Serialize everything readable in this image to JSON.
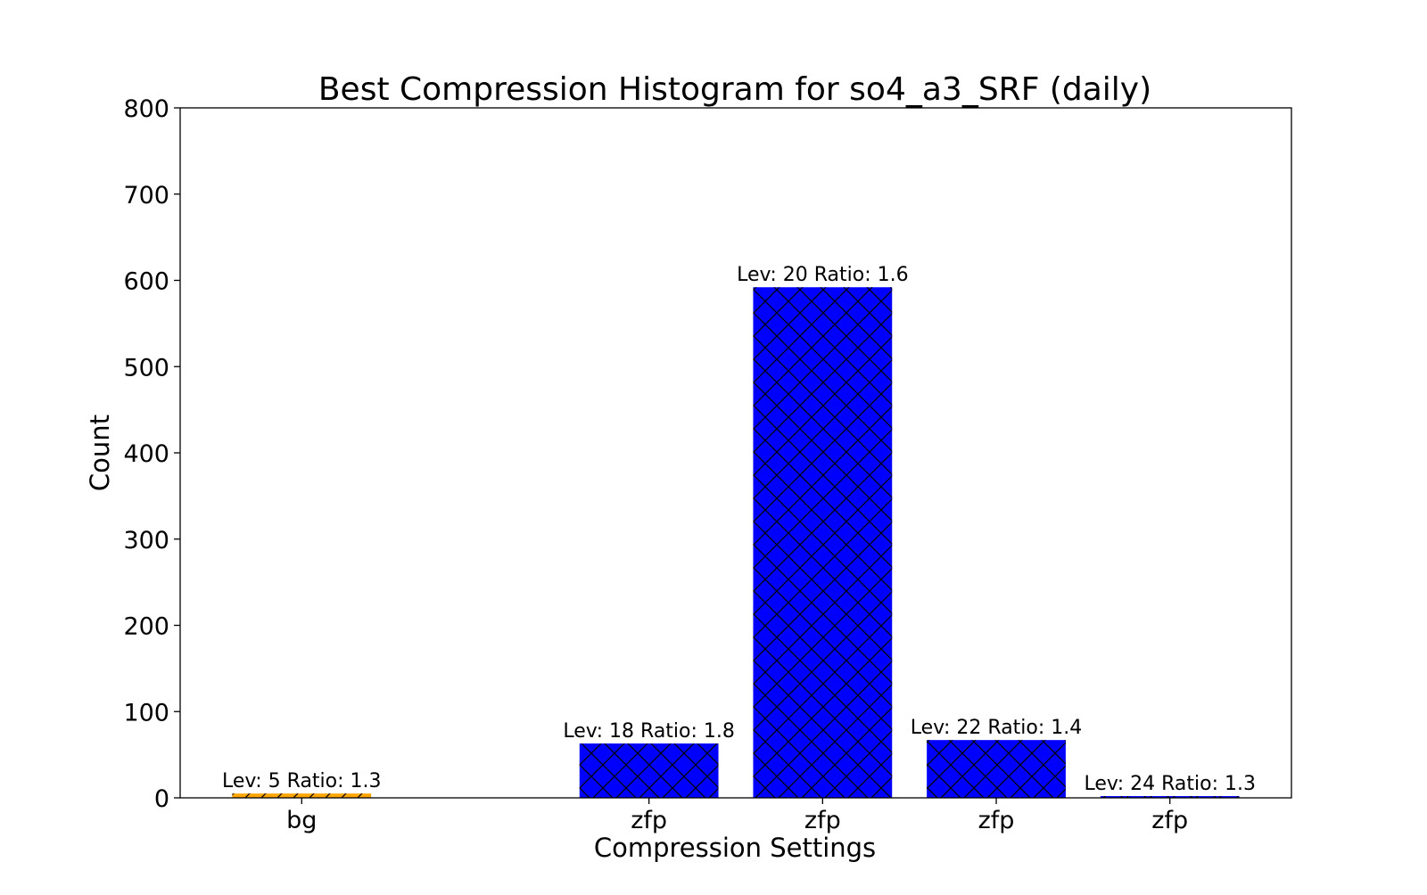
{
  "chart_data": {
    "type": "bar",
    "title": "Best Compression Histogram for so4_a3_SRF (daily)",
    "xlabel": "Compression Settings",
    "ylabel": "Count",
    "ylim": [
      0,
      800
    ],
    "yticks": [
      0,
      100,
      200,
      300,
      400,
      500,
      600,
      700,
      800
    ],
    "grid": false,
    "legend": "none",
    "positions": [
      0,
      2,
      3,
      4,
      5
    ],
    "xlim": [
      -0.7,
      5.7
    ],
    "categories": [
      "bg",
      "zfp",
      "zfp",
      "zfp",
      "zfp"
    ],
    "values": [
      5,
      63,
      592,
      67,
      2
    ],
    "bar_labels": [
      "Lev: 5 Ratio: 1.3",
      "Lev: 18 Ratio: 1.8",
      "Lev: 20 Ratio: 1.6",
      "Lev: 22 Ratio: 1.4",
      "Lev: 24 Ratio: 1.3"
    ],
    "bar_colors": [
      "#FFA500",
      "#0000FF",
      "#0000FF",
      "#0000FF",
      "#0000FF"
    ],
    "hatch": [
      "diagonal",
      "crosshatch",
      "crosshatch",
      "crosshatch",
      "crosshatch"
    ],
    "hatch_color": "#000000"
  }
}
